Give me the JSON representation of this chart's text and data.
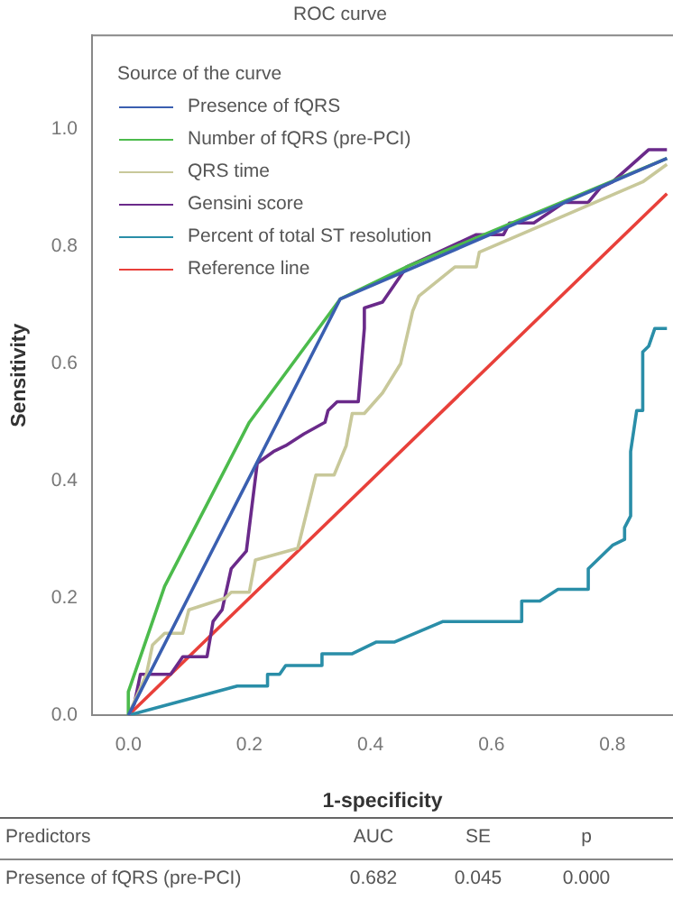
{
  "chart_data": {
    "type": "line",
    "title": "ROC curve",
    "xlabel": "1-specificity",
    "ylabel": "Sensitivity",
    "legend_title": "Source of the curve",
    "legend": "top left",
    "marker": "none",
    "line_style": "solid",
    "grid": false,
    "xlim": [
      -0.06,
      0.9
    ],
    "ylim": [
      0,
      1.16
    ],
    "xticks": [
      {
        "value": 0,
        "label": "0.0"
      },
      0.2,
      0.4,
      0.6,
      0.8
    ],
    "yticks": [
      {
        "value": 0,
        "label": "0.0"
      },
      0.2,
      0.4,
      0.6,
      0.8,
      {
        "value": 1,
        "label": "1.0"
      }
    ],
    "series": [
      {
        "name": "Presence of fQRS",
        "color": "#3a5fb0",
        "x": [
          0,
          0.35,
          0.89
        ],
        "values": [
          0,
          0.71,
          0.95
        ]
      },
      {
        "name": "Number of fQRS (pre-PCI)",
        "color": "#4cbb4c",
        "x": [
          0,
          0,
          0.06,
          0.2,
          0.35,
          0.46,
          0.89
        ],
        "values": [
          0,
          0.04,
          0.22,
          0.5,
          0.71,
          0.765,
          0.95
        ]
      },
      {
        "name": "QRS time",
        "color": "#c8c89a",
        "x": [
          0,
          0.03,
          0.04,
          0.06,
          0.09,
          0.1,
          0.16,
          0.17,
          0.2,
          0.21,
          0.28,
          0.31,
          0.34,
          0.36,
          0.37,
          0.39,
          0.42,
          0.45,
          0.47,
          0.48,
          0.54,
          0.575,
          0.58,
          0.85,
          0.89
        ],
        "values": [
          0,
          0.07,
          0.12,
          0.14,
          0.14,
          0.18,
          0.2,
          0.21,
          0.21,
          0.265,
          0.285,
          0.41,
          0.41,
          0.46,
          0.515,
          0.515,
          0.55,
          0.6,
          0.69,
          0.715,
          0.765,
          0.765,
          0.79,
          0.91,
          0.94
        ]
      },
      {
        "name": "Gensini score",
        "color": "#6a2a8a",
        "x": [
          0,
          0.01,
          0.02,
          0.07,
          0.09,
          0.13,
          0.14,
          0.155,
          0.17,
          0.195,
          0.213,
          0.24,
          0.26,
          0.29,
          0.325,
          0.33,
          0.345,
          0.38,
          0.39,
          0.39,
          0.42,
          0.44,
          0.46,
          0.575,
          0.62,
          0.63,
          0.67,
          0.72,
          0.76,
          0.78,
          0.8,
          0.86,
          0.89
        ],
        "values": [
          0,
          0.02,
          0.07,
          0.07,
          0.1,
          0.1,
          0.16,
          0.18,
          0.25,
          0.28,
          0.43,
          0.45,
          0.46,
          0.48,
          0.5,
          0.52,
          0.535,
          0.535,
          0.66,
          0.695,
          0.705,
          0.735,
          0.765,
          0.82,
          0.82,
          0.84,
          0.84,
          0.875,
          0.875,
          0.9,
          0.91,
          0.965,
          0.965
        ]
      },
      {
        "name": "Percent of total ST resolution",
        "color": "#2a8ea8",
        "x": [
          0,
          0.18,
          0.23,
          0.23,
          0.25,
          0.26,
          0.32,
          0.32,
          0.37,
          0.41,
          0.44,
          0.52,
          0.65,
          0.65,
          0.68,
          0.71,
          0.76,
          0.76,
          0.8,
          0.82,
          0.82,
          0.83,
          0.83,
          0.84,
          0.85,
          0.85,
          0.86,
          0.87,
          0.89
        ],
        "values": [
          0,
          0.05,
          0.05,
          0.07,
          0.07,
          0.085,
          0.085,
          0.105,
          0.105,
          0.125,
          0.125,
          0.16,
          0.16,
          0.195,
          0.195,
          0.215,
          0.215,
          0.25,
          0.29,
          0.3,
          0.32,
          0.34,
          0.45,
          0.52,
          0.52,
          0.62,
          0.63,
          0.66,
          0.66
        ]
      },
      {
        "name": "Reference line",
        "color": "#e8403a",
        "x": [
          0,
          0.89
        ],
        "values": [
          0,
          0.89
        ]
      }
    ],
    "annotations": [
      "Predictors",
      "AUC",
      "SE",
      "p",
      "Presence of fQRS (pre-PCI)",
      "0.682",
      "0.045",
      "0.000"
    ]
  }
}
